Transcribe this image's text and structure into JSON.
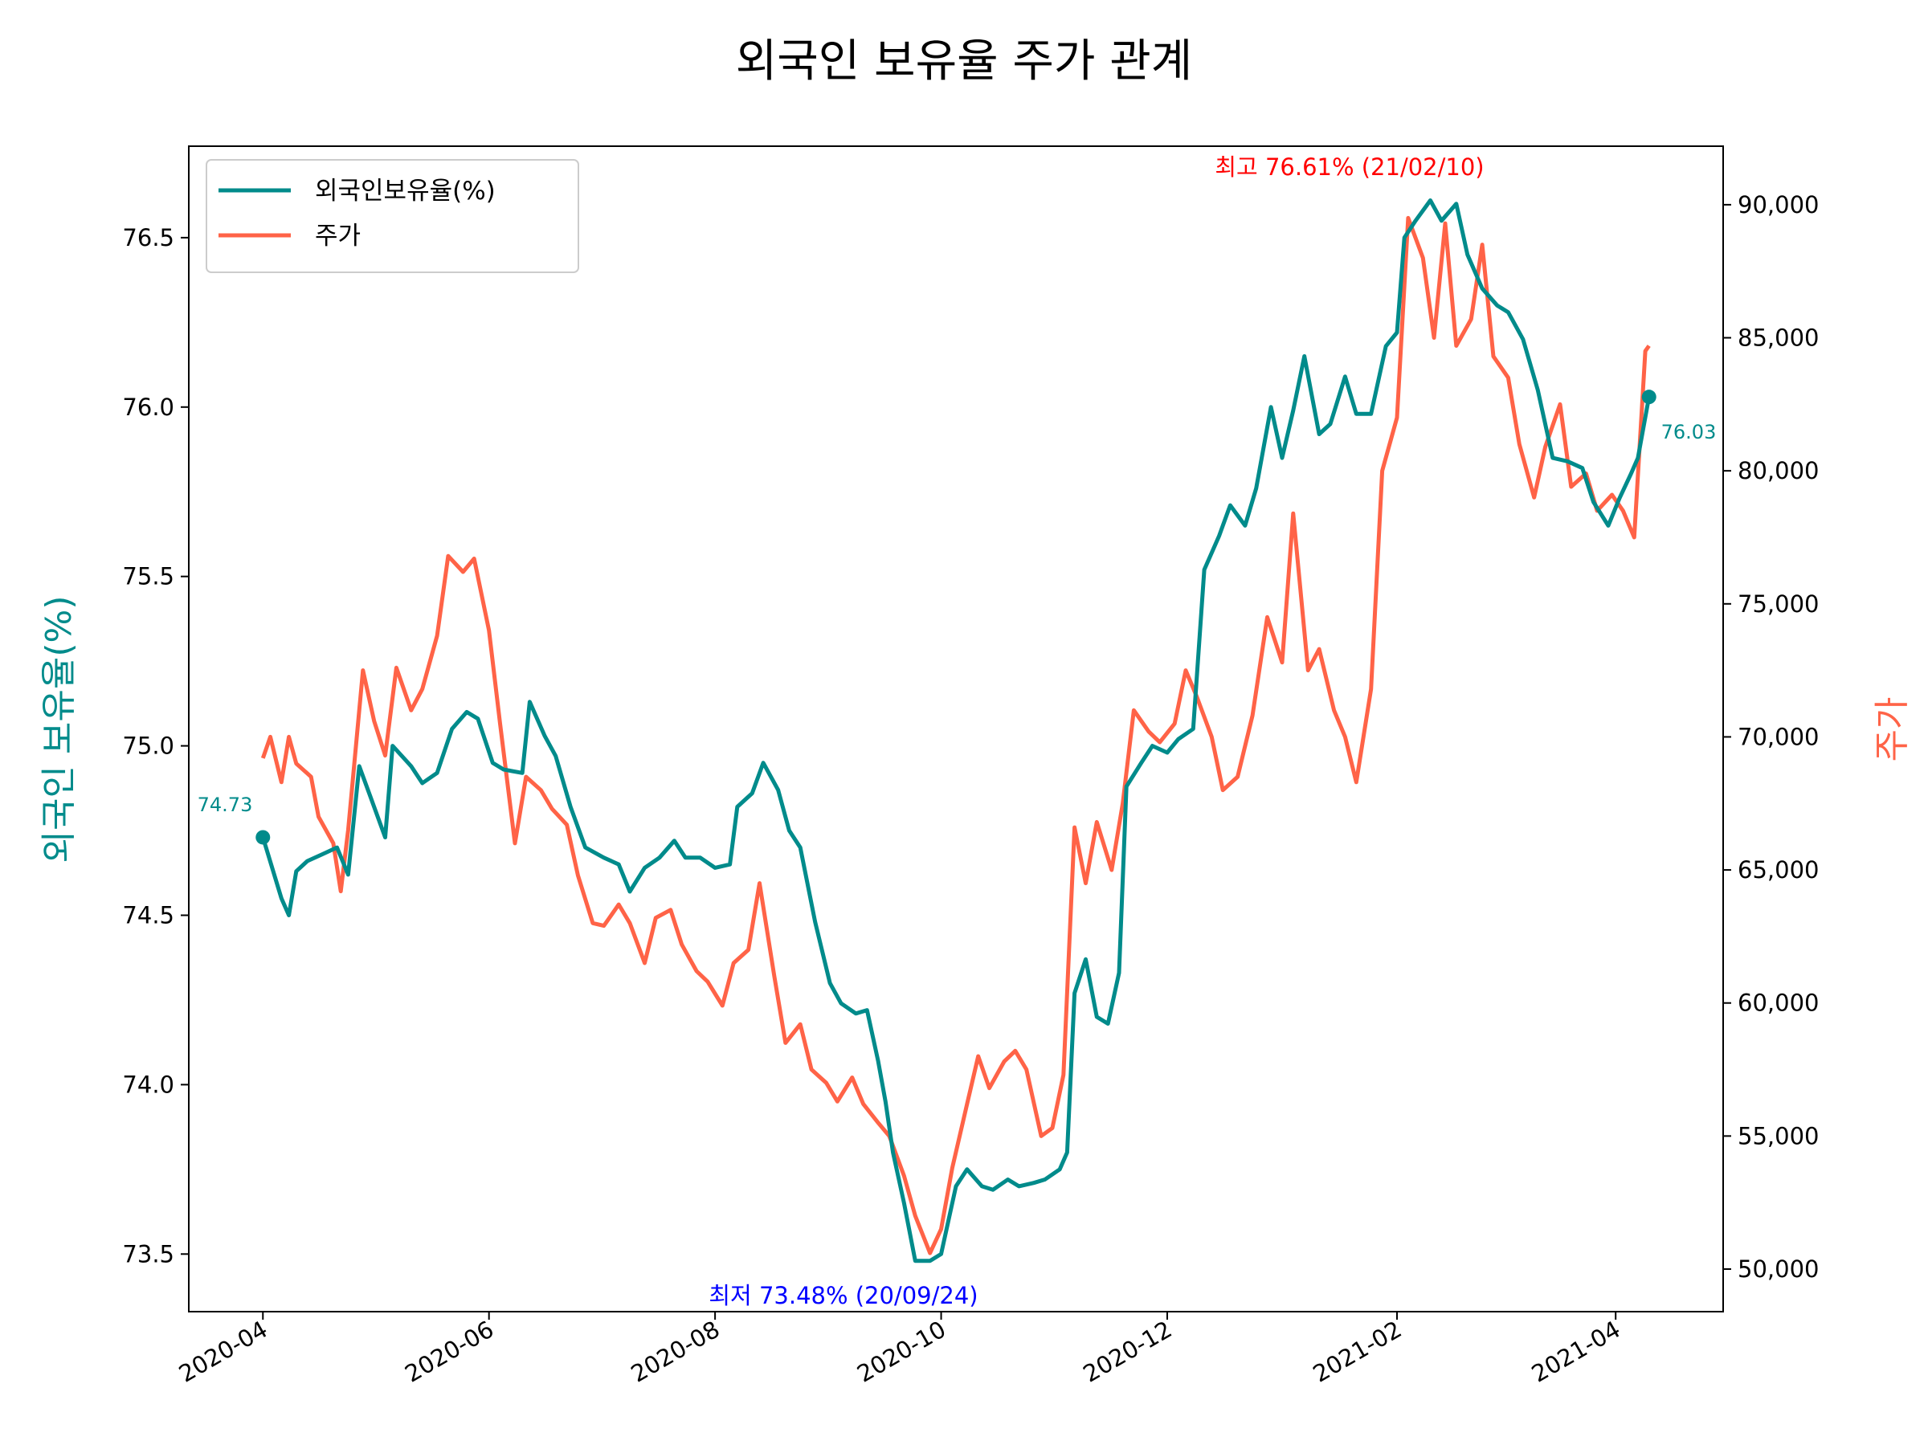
{
  "chart_data": {
    "type": "line",
    "title": "외국인 보유율 주가 관계",
    "ylabel_left": "외국인 보유율(%)",
    "ylabel_right": "주가",
    "ylim_left": [
      73.33,
      76.77
    ],
    "ylim_right": [
      48400,
      92200
    ],
    "xlim": [
      "2020-03-12",
      "2021-04-30"
    ],
    "x_ticks": [
      "2020-04",
      "2020-06",
      "2020-08",
      "2020-10",
      "2020-12",
      "2021-02",
      "2021-04"
    ],
    "x_tick_dates": [
      "2020-04-01",
      "2020-06-01",
      "2020-08-01",
      "2020-10-01",
      "2020-12-01",
      "2021-02-01",
      "2021-04-01"
    ],
    "y_ticks_left": [
      "73.5",
      "74.0",
      "74.5",
      "75.0",
      "75.5",
      "76.0",
      "76.5"
    ],
    "y_tick_values_left": [
      73.5,
      74.0,
      74.5,
      75.0,
      75.5,
      76.0,
      76.5
    ],
    "y_ticks_right": [
      "50,000",
      "55,000",
      "60,000",
      "65,000",
      "70,000",
      "75,000",
      "80,000",
      "85,000",
      "90,000"
    ],
    "y_tick_values_right": [
      50000,
      55000,
      60000,
      65000,
      70000,
      75000,
      80000,
      85000,
      90000
    ],
    "grid": false,
    "legend_position": "top-left",
    "series": [
      {
        "name": "외국인보유율(%)",
        "axis": "left",
        "color": "#008b8b",
        "points": [
          [
            "2020-04-01",
            74.73
          ],
          [
            "2020-04-06",
            74.55
          ],
          [
            "2020-04-08",
            74.5
          ],
          [
            "2020-04-10",
            74.63
          ],
          [
            "2020-04-13",
            74.66
          ],
          [
            "2020-04-17",
            74.68
          ],
          [
            "2020-04-21",
            74.7
          ],
          [
            "2020-04-24",
            74.62
          ],
          [
            "2020-04-27",
            74.94
          ],
          [
            "2020-04-30",
            74.85
          ],
          [
            "2020-05-04",
            74.73
          ],
          [
            "2020-05-06",
            75.0
          ],
          [
            "2020-05-11",
            74.94
          ],
          [
            "2020-05-14",
            74.89
          ],
          [
            "2020-05-18",
            74.92
          ],
          [
            "2020-05-22",
            75.05
          ],
          [
            "2020-05-26",
            75.1
          ],
          [
            "2020-05-29",
            75.08
          ],
          [
            "2020-06-02",
            74.95
          ],
          [
            "2020-06-05",
            74.93
          ],
          [
            "2020-06-10",
            74.92
          ],
          [
            "2020-06-12",
            75.13
          ],
          [
            "2020-06-16",
            75.03
          ],
          [
            "2020-06-19",
            74.97
          ],
          [
            "2020-06-23",
            74.82
          ],
          [
            "2020-06-27",
            74.7
          ],
          [
            "2020-07-02",
            74.67
          ],
          [
            "2020-07-06",
            74.65
          ],
          [
            "2020-07-09",
            74.57
          ],
          [
            "2020-07-13",
            74.64
          ],
          [
            "2020-07-17",
            74.67
          ],
          [
            "2020-07-21",
            74.72
          ],
          [
            "2020-07-24",
            74.67
          ],
          [
            "2020-07-28",
            74.67
          ],
          [
            "2020-08-01",
            74.64
          ],
          [
            "2020-08-05",
            74.65
          ],
          [
            "2020-08-07",
            74.82
          ],
          [
            "2020-08-11",
            74.86
          ],
          [
            "2020-08-14",
            74.95
          ],
          [
            "2020-08-18",
            74.87
          ],
          [
            "2020-08-21",
            74.75
          ],
          [
            "2020-08-24",
            74.7
          ],
          [
            "2020-08-28",
            74.48
          ],
          [
            "2020-09-01",
            74.3
          ],
          [
            "2020-09-04",
            74.24
          ],
          [
            "2020-09-08",
            74.21
          ],
          [
            "2020-09-11",
            74.22
          ],
          [
            "2020-09-14",
            74.07
          ],
          [
            "2020-09-16",
            73.95
          ],
          [
            "2020-09-18",
            73.8
          ],
          [
            "2020-09-21",
            73.65
          ],
          [
            "2020-09-24",
            73.48
          ],
          [
            "2020-09-28",
            73.48
          ],
          [
            "2020-10-01",
            73.5
          ],
          [
            "2020-10-05",
            73.7
          ],
          [
            "2020-10-08",
            73.75
          ],
          [
            "2020-10-12",
            73.7
          ],
          [
            "2020-10-15",
            73.69
          ],
          [
            "2020-10-19",
            73.72
          ],
          [
            "2020-10-22",
            73.7
          ],
          [
            "2020-10-26",
            73.71
          ],
          [
            "2020-10-29",
            73.72
          ],
          [
            "2020-11-02",
            73.75
          ],
          [
            "2020-11-04",
            73.8
          ],
          [
            "2020-11-06",
            74.27
          ],
          [
            "2020-11-09",
            74.37
          ],
          [
            "2020-11-12",
            74.2
          ],
          [
            "2020-11-15",
            74.18
          ],
          [
            "2020-11-18",
            74.33
          ],
          [
            "2020-11-20",
            74.88
          ],
          [
            "2020-11-24",
            74.95
          ],
          [
            "2020-11-27",
            75.0
          ],
          [
            "2020-12-01",
            74.98
          ],
          [
            "2020-12-04",
            75.02
          ],
          [
            "2020-12-08",
            75.05
          ],
          [
            "2020-12-11",
            75.52
          ],
          [
            "2020-12-15",
            75.62
          ],
          [
            "2020-12-18",
            75.71
          ],
          [
            "2020-12-22",
            75.65
          ],
          [
            "2020-12-25",
            75.76
          ],
          [
            "2020-12-29",
            76.0
          ],
          [
            "2021-01-01",
            75.85
          ],
          [
            "2021-01-04",
            75.99
          ],
          [
            "2021-01-07",
            76.15
          ],
          [
            "2021-01-11",
            75.92
          ],
          [
            "2021-01-14",
            75.95
          ],
          [
            "2021-01-18",
            76.09
          ],
          [
            "2021-01-21",
            75.98
          ],
          [
            "2021-01-25",
            75.98
          ],
          [
            "2021-01-29",
            76.18
          ],
          [
            "2021-02-01",
            76.22
          ],
          [
            "2021-02-03",
            76.5
          ],
          [
            "2021-02-06",
            76.55
          ],
          [
            "2021-02-10",
            76.61
          ],
          [
            "2021-02-13",
            76.55
          ],
          [
            "2021-02-17",
            76.6
          ],
          [
            "2021-02-20",
            76.45
          ],
          [
            "2021-02-24",
            76.35
          ],
          [
            "2021-02-28",
            76.3
          ],
          [
            "2021-03-03",
            76.28
          ],
          [
            "2021-03-07",
            76.2
          ],
          [
            "2021-03-11",
            76.05
          ],
          [
            "2021-03-15",
            75.85
          ],
          [
            "2021-03-19",
            75.84
          ],
          [
            "2021-03-23",
            75.82
          ],
          [
            "2021-03-26",
            75.72
          ],
          [
            "2021-03-30",
            75.65
          ],
          [
            "2021-04-02",
            75.73
          ],
          [
            "2021-04-05",
            75.8
          ],
          [
            "2021-04-07",
            75.85
          ],
          [
            "2021-04-10",
            76.03
          ]
        ]
      },
      {
        "name": "주가",
        "axis": "right",
        "color": "#ff6347",
        "points": [
          [
            "2020-04-01",
            69200
          ],
          [
            "2020-04-03",
            70000
          ],
          [
            "2020-04-06",
            68300
          ],
          [
            "2020-04-08",
            70000
          ],
          [
            "2020-04-10",
            69000
          ],
          [
            "2020-04-14",
            68500
          ],
          [
            "2020-04-16",
            67000
          ],
          [
            "2020-04-20",
            66000
          ],
          [
            "2020-04-22",
            64200
          ],
          [
            "2020-04-24",
            66500
          ],
          [
            "2020-04-28",
            72500
          ],
          [
            "2020-05-01",
            70600
          ],
          [
            "2020-05-04",
            69300
          ],
          [
            "2020-05-07",
            72600
          ],
          [
            "2020-05-11",
            71000
          ],
          [
            "2020-05-14",
            71800
          ],
          [
            "2020-05-18",
            73800
          ],
          [
            "2020-05-21",
            76800
          ],
          [
            "2020-05-25",
            76200
          ],
          [
            "2020-05-28",
            76700
          ],
          [
            "2020-06-01",
            74000
          ],
          [
            "2020-06-04",
            70500
          ],
          [
            "2020-06-08",
            66000
          ],
          [
            "2020-06-11",
            68500
          ],
          [
            "2020-06-15",
            68000
          ],
          [
            "2020-06-18",
            67300
          ],
          [
            "2020-06-22",
            66700
          ],
          [
            "2020-06-25",
            64800
          ],
          [
            "2020-06-29",
            63000
          ],
          [
            "2020-07-02",
            62900
          ],
          [
            "2020-07-06",
            63700
          ],
          [
            "2020-07-09",
            63000
          ],
          [
            "2020-07-13",
            61500
          ],
          [
            "2020-07-16",
            63200
          ],
          [
            "2020-07-20",
            63500
          ],
          [
            "2020-07-23",
            62200
          ],
          [
            "2020-07-27",
            61200
          ],
          [
            "2020-07-30",
            60800
          ],
          [
            "2020-08-03",
            59900
          ],
          [
            "2020-08-06",
            61500
          ],
          [
            "2020-08-10",
            62000
          ],
          [
            "2020-08-13",
            64500
          ],
          [
            "2020-08-17",
            61000
          ],
          [
            "2020-08-20",
            58500
          ],
          [
            "2020-08-24",
            59200
          ],
          [
            "2020-08-27",
            57500
          ],
          [
            "2020-08-31",
            57000
          ],
          [
            "2020-09-03",
            56300
          ],
          [
            "2020-09-07",
            57200
          ],
          [
            "2020-09-10",
            56200
          ],
          [
            "2020-09-14",
            55500
          ],
          [
            "2020-09-17",
            55000
          ],
          [
            "2020-09-21",
            53500
          ],
          [
            "2020-09-24",
            52000
          ],
          [
            "2020-09-28",
            50600
          ],
          [
            "2020-10-01",
            51500
          ],
          [
            "2020-10-04",
            53800
          ],
          [
            "2020-10-08",
            56200
          ],
          [
            "2020-10-11",
            58000
          ],
          [
            "2020-10-14",
            56800
          ],
          [
            "2020-10-18",
            57800
          ],
          [
            "2020-10-21",
            58200
          ],
          [
            "2020-10-24",
            57500
          ],
          [
            "2020-10-28",
            55000
          ],
          [
            "2020-10-31",
            55300
          ],
          [
            "2020-11-03",
            57300
          ],
          [
            "2020-11-06",
            66600
          ],
          [
            "2020-11-09",
            64500
          ],
          [
            "2020-11-12",
            66800
          ],
          [
            "2020-11-16",
            65000
          ],
          [
            "2020-11-19",
            67500
          ],
          [
            "2020-11-22",
            71000
          ],
          [
            "2020-11-26",
            70200
          ],
          [
            "2020-11-29",
            69800
          ],
          [
            "2020-12-03",
            70500
          ],
          [
            "2020-12-06",
            72500
          ],
          [
            "2020-12-09",
            71500
          ],
          [
            "2020-12-13",
            70000
          ],
          [
            "2020-12-16",
            68000
          ],
          [
            "2020-12-20",
            68500
          ],
          [
            "2020-12-24",
            70800
          ],
          [
            "2020-12-28",
            74500
          ],
          [
            "2021-01-01",
            72800
          ],
          [
            "2021-01-04",
            78400
          ],
          [
            "2021-01-08",
            72500
          ],
          [
            "2021-01-11",
            73300
          ],
          [
            "2021-01-15",
            71000
          ],
          [
            "2021-01-18",
            70000
          ],
          [
            "2021-01-21",
            68300
          ],
          [
            "2021-01-25",
            71800
          ],
          [
            "2021-01-28",
            80000
          ],
          [
            "2021-02-01",
            82000
          ],
          [
            "2021-02-04",
            89500
          ],
          [
            "2021-02-08",
            88000
          ],
          [
            "2021-02-11",
            85000
          ],
          [
            "2021-02-14",
            89300
          ],
          [
            "2021-02-17",
            84700
          ],
          [
            "2021-02-21",
            85700
          ],
          [
            "2021-02-24",
            88500
          ],
          [
            "2021-02-27",
            84300
          ],
          [
            "2021-03-03",
            83500
          ],
          [
            "2021-03-06",
            81000
          ],
          [
            "2021-03-10",
            79000
          ],
          [
            "2021-03-13",
            80900
          ],
          [
            "2021-03-17",
            82500
          ],
          [
            "2021-03-20",
            79400
          ],
          [
            "2021-03-24",
            79900
          ],
          [
            "2021-03-27",
            78500
          ],
          [
            "2021-03-31",
            79100
          ],
          [
            "2021-04-03",
            78500
          ],
          [
            "2021-04-06",
            77500
          ],
          [
            "2021-04-09",
            84500
          ],
          [
            "2021-04-10",
            84700
          ]
        ]
      }
    ],
    "annotations": {
      "max": {
        "text": "최고 76.61% (21/02/10)",
        "color": "#ff0000"
      },
      "min": {
        "text": "최저 73.48% (20/09/24)",
        "color": "#0000ff"
      },
      "start": {
        "text": "74.73",
        "color": "#008b8b"
      },
      "end": {
        "text": "76.03",
        "color": "#008b8b"
      }
    }
  }
}
